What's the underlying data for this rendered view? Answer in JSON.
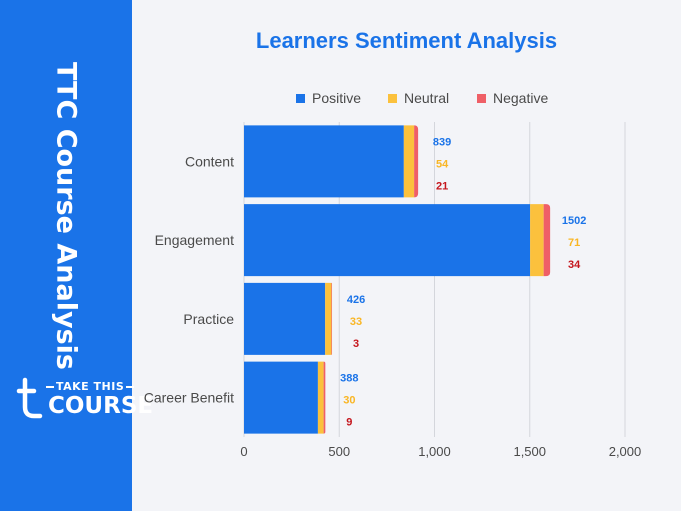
{
  "sidebar": {
    "title": "TTC Course Analysis",
    "logo_top": "TAKE THIS",
    "logo_bottom": "COURSE"
  },
  "colors": {
    "positive": "#1a73e8",
    "neutral": "#fbc13d",
    "negative": "#ef5f67",
    "neutral_label": "#f9b625",
    "negative_label": "#c5161d"
  },
  "chart_data": {
    "type": "bar",
    "orientation": "horizontal",
    "stacked": true,
    "title": "Learners Sentiment Analysis",
    "categories": [
      "Content",
      "Engagement",
      "Practice",
      "Career Benefit"
    ],
    "series": [
      {
        "name": "Positive",
        "values": [
          839,
          1502,
          426,
          388
        ]
      },
      {
        "name": "Neutral",
        "values": [
          54,
          71,
          33,
          30
        ]
      },
      {
        "name": "Negative",
        "values": [
          21,
          34,
          3,
          9
        ]
      }
    ],
    "xlim": [
      0,
      2000
    ],
    "xticks": [
      "0",
      "500",
      "1,000",
      "1,500",
      "2,000"
    ],
    "xtick_values": [
      0,
      500,
      1000,
      1500,
      2000
    ],
    "grid": true,
    "legend": "top"
  }
}
